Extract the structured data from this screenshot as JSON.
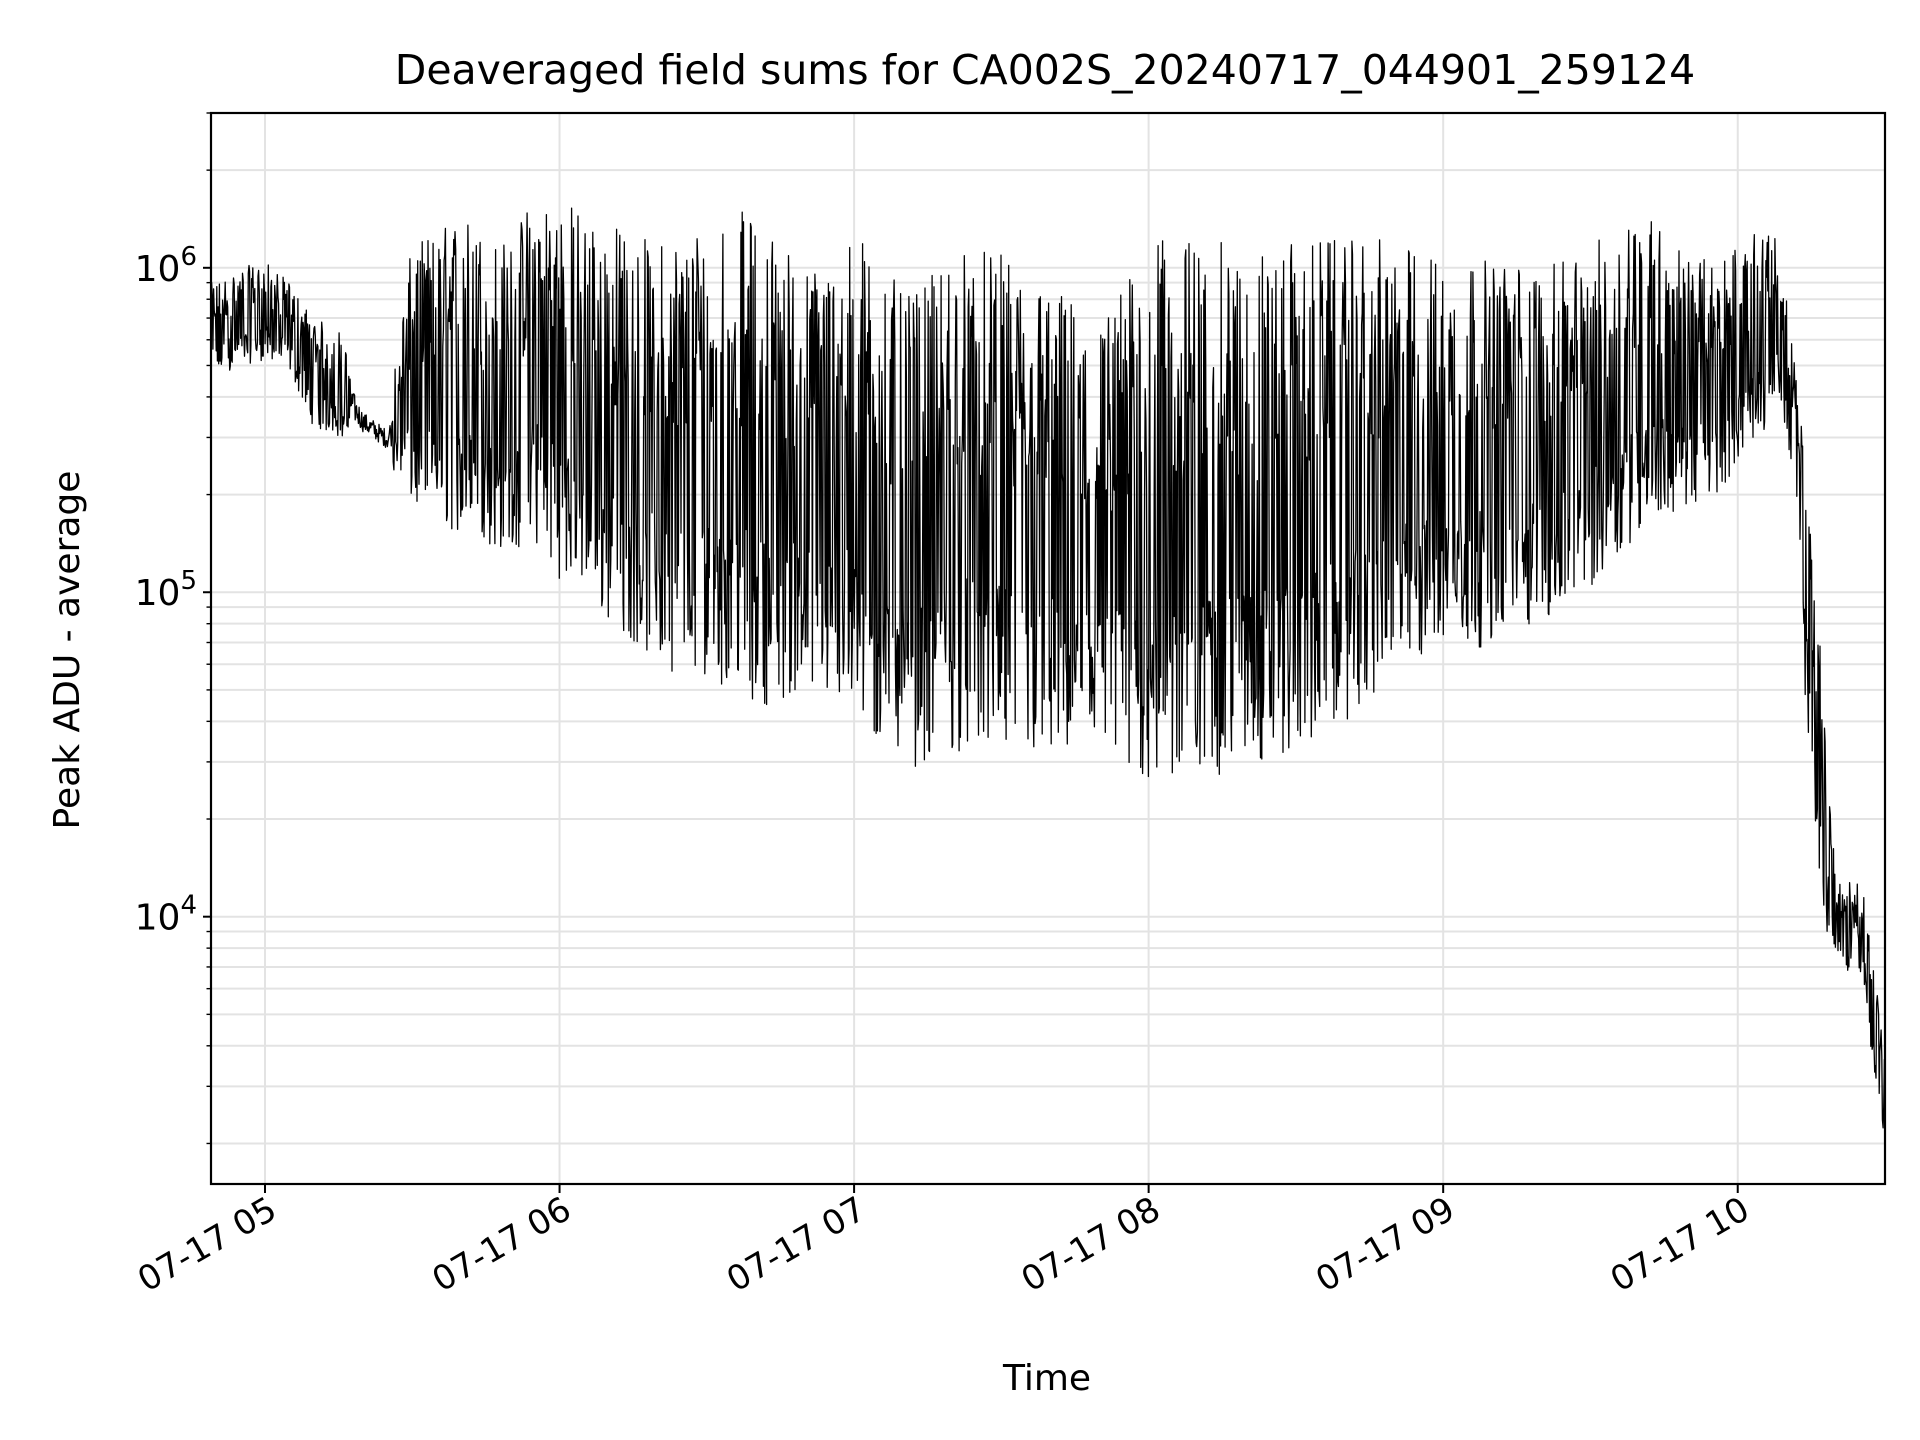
{
  "chart_data": {
    "type": "line",
    "title": "Deaveraged field sums for CA002S_20240717_044901_259124",
    "xlabel": "Time",
    "ylabel": "Peak ADU - average",
    "x_scale": "time",
    "y_scale": "log",
    "xlim": [
      "2024-07-17T04:49:00",
      "2024-07-17T10:30:00"
    ],
    "ylim": [
      1500,
      3000000
    ],
    "x_ticks": [
      {
        "label": "07-17 05",
        "value": "2024-07-17T05:00:00"
      },
      {
        "label": "07-17 06",
        "value": "2024-07-17T06:00:00"
      },
      {
        "label": "07-17 07",
        "value": "2024-07-17T07:00:00"
      },
      {
        "label": "07-17 08",
        "value": "2024-07-17T08:00:00"
      },
      {
        "label": "07-17 09",
        "value": "2024-07-17T09:00:00"
      },
      {
        "label": "07-17 10",
        "value": "2024-07-17T10:00:00"
      }
    ],
    "y_ticks": [
      {
        "base": "10",
        "exp": "4",
        "value": 10000
      },
      {
        "base": "10",
        "exp": "5",
        "value": 100000
      },
      {
        "base": "10",
        "exp": "6",
        "value": 1000000
      }
    ],
    "grid": true,
    "line_color": "#000000",
    "series": [
      {
        "x": [
          "04:49",
          "04:55",
          "05:00",
          "05:05",
          "05:10",
          "05:15",
          "05:20",
          "05:25",
          "05:30",
          "05:35",
          "05:40",
          "05:45",
          "05:50",
          "05:55",
          "06:00",
          "06:05",
          "06:10",
          "06:15",
          "06:20",
          "06:25",
          "06:30",
          "06:35",
          "06:40",
          "06:45",
          "06:50",
          "06:55",
          "07:00",
          "07:05",
          "07:10",
          "07:15",
          "07:20",
          "07:25",
          "07:30",
          "07:35",
          "07:40",
          "07:45",
          "07:50",
          "07:55",
          "08:00",
          "08:05",
          "08:10",
          "08:15",
          "08:20",
          "08:25",
          "08:30",
          "08:35",
          "08:40",
          "08:45",
          "08:50",
          "08:55",
          "09:00",
          "09:05",
          "09:10",
          "09:15",
          "09:20",
          "09:25",
          "09:30",
          "09:35",
          "09:40",
          "09:45",
          "09:50",
          "09:55",
          "10:00",
          "10:05",
          "10:08",
          "10:10",
          "10:12",
          "10:14",
          "10:16",
          "10:18",
          "10:20",
          "10:22",
          "10:24",
          "10:26",
          "10:28",
          "10:30"
        ],
        "high": [
          900000,
          1000000,
          1050000,
          900000,
          700000,
          650000,
          400000,
          350000,
          1200000,
          1300000,
          1500000,
          1300000,
          1200000,
          1800000,
          1700000,
          1500000,
          1400000,
          1300000,
          1200000,
          1350000,
          1450000,
          1600000,
          1400000,
          1300000,
          1000000,
          1100000,
          1300000,
          1200000,
          800000,
          900000,
          1200000,
          1150000,
          1100000,
          1000000,
          900000,
          800000,
          700000,
          900000,
          1200000,
          1250000,
          1250000,
          1200000,
          1150000,
          1150000,
          1200000,
          1250000,
          1200000,
          1250000,
          1200000,
          1150000,
          1100000,
          1100000,
          1050000,
          1050000,
          1000000,
          1050000,
          1200000,
          1300000,
          1700000,
          1300000,
          1100000,
          1050000,
          1200000,
          1300000,
          1250000,
          800000,
          450000,
          250000,
          100000,
          40000,
          14000,
          12000,
          14000,
          12000,
          7000,
          3500
        ],
        "low": [
          450000,
          500000,
          520000,
          480000,
          320000,
          300000,
          280000,
          250000,
          180000,
          160000,
          150000,
          140000,
          130000,
          140000,
          110000,
          100000,
          80000,
          70000,
          60000,
          55000,
          55000,
          50000,
          45000,
          45000,
          50000,
          45000,
          40000,
          32000,
          30000,
          28000,
          32000,
          32000,
          30000,
          30000,
          30000,
          29000,
          28000,
          26000,
          25000,
          25000,
          26000,
          27000,
          28000,
          30000,
          32000,
          35000,
          40000,
          45000,
          55000,
          60000,
          65000,
          65000,
          70000,
          75000,
          80000,
          90000,
          100000,
          130000,
          150000,
          170000,
          180000,
          190000,
          250000,
          300000,
          450000,
          300000,
          150000,
          40000,
          16000,
          9000,
          7500,
          6500,
          8000,
          5500,
          3000,
          2000
        ]
      }
    ]
  }
}
